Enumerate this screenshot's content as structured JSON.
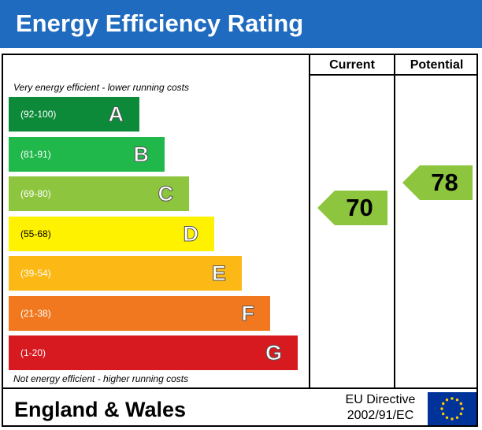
{
  "header": {
    "title": "Energy Efficiency Rating"
  },
  "columns": {
    "current": "Current",
    "potential": "Potential"
  },
  "notes": {
    "top": "Very energy efficient - lower running costs",
    "bottom": "Not energy efficient - higher running costs"
  },
  "footer": {
    "region": "England & Wales",
    "directive_line1": "EU Directive",
    "directive_line2": "2002/91/EC",
    "flag": "eu-flag-icon"
  },
  "chart_data": {
    "type": "bar",
    "title": "Energy Efficiency Rating",
    "categories": [
      "A",
      "B",
      "C",
      "D",
      "E",
      "F",
      "G"
    ],
    "ranges": [
      "(92-100)",
      "(81-91)",
      "(69-80)",
      "(55-68)",
      "(39-54)",
      "(21-38)",
      "(1-20)"
    ],
    "range_bounds": [
      [
        92,
        100
      ],
      [
        81,
        91
      ],
      [
        69,
        80
      ],
      [
        55,
        68
      ],
      [
        39,
        54
      ],
      [
        21,
        38
      ],
      [
        1,
        20
      ]
    ],
    "colors": [
      "#0c8a3a",
      "#20b84a",
      "#8dc53e",
      "#fff200",
      "#fcb814",
      "#f2781f",
      "#d71920"
    ],
    "current": {
      "label": "Current",
      "value": 70,
      "band": "C"
    },
    "potential": {
      "label": "Potential",
      "value": 78,
      "band": "C"
    }
  }
}
